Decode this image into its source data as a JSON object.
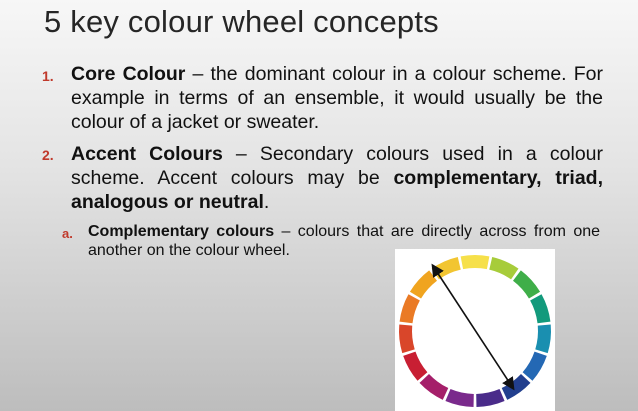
{
  "slide": {
    "title": "5 key colour wheel concepts",
    "items": [
      {
        "number": "1.",
        "term": "Core Colour",
        "dash": " – ",
        "text": "the dominant colour in a colour scheme. For example in terms of an ensemble, it would usually be the colour of a jacket or sweater."
      },
      {
        "number": "2.",
        "term": "Accent Colours",
        "dash": " – ",
        "text": "Secondary colours used in a colour scheme. Accent colours may be ",
        "bold_tail": "complementary, triad, analogous or neutral",
        "end": "."
      }
    ],
    "subitem": {
      "letter": "a.",
      "term": "Complementary colours",
      "dash": " – ",
      "text": "colours that are directly across from one another on the colour wheel."
    }
  },
  "wheel": {
    "segment_colors": [
      "#f6e04a",
      "#a7cc3a",
      "#3fae49",
      "#139a7c",
      "#1a8fb0",
      "#2468b4",
      "#223f8e",
      "#4a2b8a",
      "#7a2a8c",
      "#a51f6a",
      "#c81f33",
      "#d9462a",
      "#ea7a25",
      "#f0a41f",
      "#f2c531"
    ],
    "arrow_color": "#111111"
  }
}
